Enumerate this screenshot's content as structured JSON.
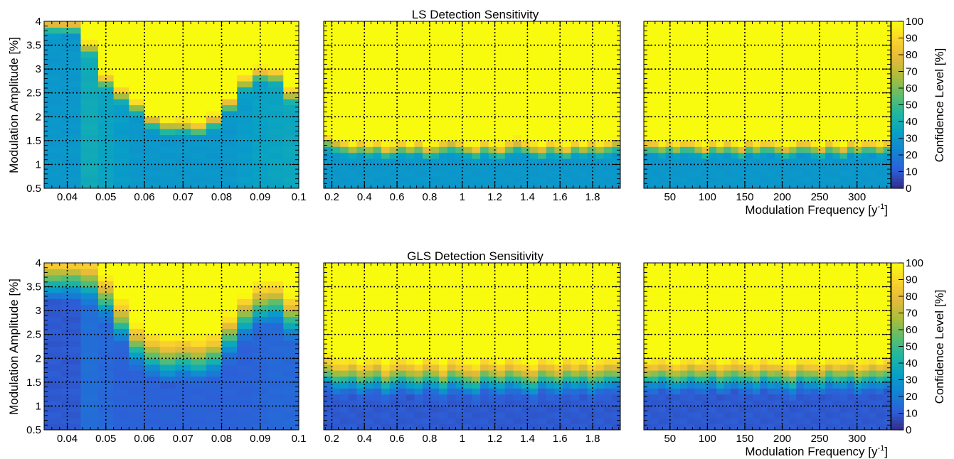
{
  "chart_data": [
    {
      "type": "heatmap",
      "row": 0,
      "panel": 0,
      "title": "LS Detection Sensitivity",
      "ylabel": "Modulation Amplitude [%]",
      "xlabel": "",
      "xlim": [
        0.034,
        0.1
      ],
      "ylim": [
        0.5,
        4
      ],
      "x_ticks": [
        "0.04",
        "0.05",
        "0.06",
        "0.07",
        "0.08",
        "0.09",
        "0.1"
      ],
      "y_ticks": [
        "0.5",
        "1",
        "1.5",
        "2",
        "2.5",
        "3",
        "3.5",
        "4"
      ],
      "grid": true,
      "x_bin_edges": [
        0.034,
        0.0385,
        0.0435,
        0.048,
        0.052,
        0.056,
        0.06,
        0.064,
        0.068,
        0.072,
        0.076,
        0.08,
        0.084,
        0.088,
        0.092,
        0.096,
        0.1
      ],
      "threshold_amplitude": [
        4.05,
        4.05,
        3.6,
        2.9,
        2.6,
        2.35,
        2.05,
        1.95,
        1.95,
        1.9,
        2.05,
        2.4,
        2.85,
        3.05,
        3.0,
        2.6
      ],
      "baseline_confidence": [
        30,
        30,
        38,
        35,
        32,
        30,
        30,
        30,
        30,
        30,
        30,
        30,
        32,
        34,
        35,
        36
      ],
      "transition_width": 0.38
    },
    {
      "type": "heatmap",
      "row": 0,
      "panel": 1,
      "xlim": [
        0.15,
        1.97
      ],
      "ylim": [
        0.5,
        4
      ],
      "x_ticks": [
        "0.2",
        "0.4",
        "0.6",
        "0.8",
        "1",
        "1.2",
        "1.4",
        "1.6",
        "1.8"
      ],
      "grid": true,
      "bins": 36,
      "threshold_amplitude": [
        1.6,
        1.55,
        1.5,
        1.45,
        1.5,
        1.45,
        1.5,
        1.4,
        1.45,
        1.5,
        1.45,
        1.5,
        1.4,
        1.45,
        1.5,
        1.55,
        1.5,
        1.45,
        1.4,
        1.5,
        1.45,
        1.4,
        1.5,
        1.55,
        1.5,
        1.45,
        1.4,
        1.5,
        1.45,
        1.4,
        1.5,
        1.45,
        1.5,
        1.45,
        1.5,
        1.55
      ],
      "baseline_confidence": 30,
      "transition_width": 0.35
    },
    {
      "type": "heatmap",
      "row": 0,
      "panel": 2,
      "xlim": [
        15,
        345
      ],
      "ylim": [
        0.5,
        4
      ],
      "x_ticks": [
        "50",
        "100",
        "150",
        "200",
        "250",
        "300"
      ],
      "xlabel": "Modulation Frequency [y",
      "xlabel_sup": "-1",
      "xlabel_end": "]",
      "grid": true,
      "bins": 34,
      "threshold_amplitude": [
        1.5,
        1.5,
        1.45,
        1.5,
        1.45,
        1.5,
        1.5,
        1.45,
        1.4,
        1.5,
        1.45,
        1.5,
        1.45,
        1.4,
        1.5,
        1.45,
        1.5,
        1.5,
        1.45,
        1.4,
        1.45,
        1.5,
        1.5,
        1.45,
        1.4,
        1.5,
        1.45,
        1.4,
        1.5,
        1.45,
        1.5,
        1.5,
        1.45,
        1.5
      ],
      "baseline_confidence": 30,
      "transition_width": 0.32
    },
    {
      "type": "heatmap",
      "row": 1,
      "panel": 0,
      "title": "GLS Detection Sensitivity",
      "ylabel": "Modulation Amplitude [%]",
      "xlim": [
        0.034,
        0.1
      ],
      "ylim": [
        0.5,
        4
      ],
      "x_ticks": [
        "0.04",
        "0.05",
        "0.06",
        "0.07",
        "0.08",
        "0.09",
        "0.1"
      ],
      "y_ticks": [
        "0.5",
        "1",
        "1.5",
        "2",
        "2.5",
        "3",
        "3.5",
        "4"
      ],
      "grid": true,
      "x_bin_edges": [
        0.034,
        0.0385,
        0.0435,
        0.048,
        0.052,
        0.056,
        0.06,
        0.064,
        0.068,
        0.072,
        0.076,
        0.08,
        0.084,
        0.088,
        0.092,
        0.096,
        0.1
      ],
      "threshold_amplitude": [
        4.1,
        4.1,
        4.05,
        3.7,
        3.2,
        2.7,
        2.5,
        2.4,
        2.45,
        2.4,
        2.5,
        2.9,
        3.3,
        3.55,
        3.6,
        3.3
      ],
      "baseline_confidence": [
        10,
        10,
        16,
        14,
        12,
        12,
        12,
        12,
        12,
        12,
        12,
        12,
        12,
        13,
        14,
        14
      ],
      "transition_width": 1.0
    },
    {
      "type": "heatmap",
      "row": 1,
      "panel": 1,
      "xlim": [
        0.15,
        1.97
      ],
      "ylim": [
        0.5,
        4
      ],
      "x_ticks": [
        "0.2",
        "0.4",
        "0.6",
        "0.8",
        "1",
        "1.2",
        "1.4",
        "1.6",
        "1.8"
      ],
      "grid": true,
      "bins": 36,
      "threshold_amplitude": [
        2.05,
        1.95,
        1.95,
        2.0,
        1.9,
        1.95,
        2.0,
        1.85,
        1.95,
        2.0,
        1.95,
        1.9,
        2.0,
        1.95,
        1.85,
        2.0,
        1.95,
        1.9,
        1.85,
        2.0,
        1.95,
        1.9,
        2.0,
        1.95,
        1.9,
        1.85,
        2.0,
        1.95,
        1.9,
        2.0,
        1.95,
        2.0,
        1.9,
        1.95,
        2.0,
        2.0
      ],
      "baseline_confidence": 10,
      "transition_width": 0.8
    },
    {
      "type": "heatmap",
      "row": 1,
      "panel": 2,
      "xlim": [
        15,
        345
      ],
      "ylim": [
        0.5,
        4
      ],
      "x_ticks": [
        "50",
        "100",
        "150",
        "200",
        "250",
        "300"
      ],
      "xlabel": "Modulation Frequency [y",
      "xlabel_sup": "-1",
      "xlabel_end": "]",
      "grid": true,
      "bins": 34,
      "threshold_amplitude": [
        1.95,
        1.95,
        2.0,
        1.95,
        1.9,
        1.95,
        2.0,
        1.95,
        1.95,
        2.0,
        1.9,
        1.95,
        2.0,
        1.95,
        1.95,
        1.9,
        2.0,
        1.95,
        1.95,
        1.9,
        1.85,
        2.0,
        1.95,
        1.95,
        1.9,
        2.0,
        1.95,
        1.95,
        2.0,
        1.9,
        1.95,
        2.0,
        1.95,
        2.0
      ],
      "baseline_confidence": 10,
      "transition_width": 0.75
    }
  ],
  "colorbar": {
    "label": "Confidence Level [%]",
    "range": [
      0,
      100
    ],
    "ticks": [
      "0",
      "10",
      "20",
      "30",
      "40",
      "50",
      "60",
      "70",
      "80",
      "90",
      "100"
    ],
    "colors": [
      "#352a87",
      "#2d5fd8",
      "#1482d4",
      "#08a0c6",
      "#1eb7a1",
      "#5dbd6e",
      "#a8be3b",
      "#e5b93a",
      "#fbd22e",
      "#f9fb0e"
    ]
  }
}
